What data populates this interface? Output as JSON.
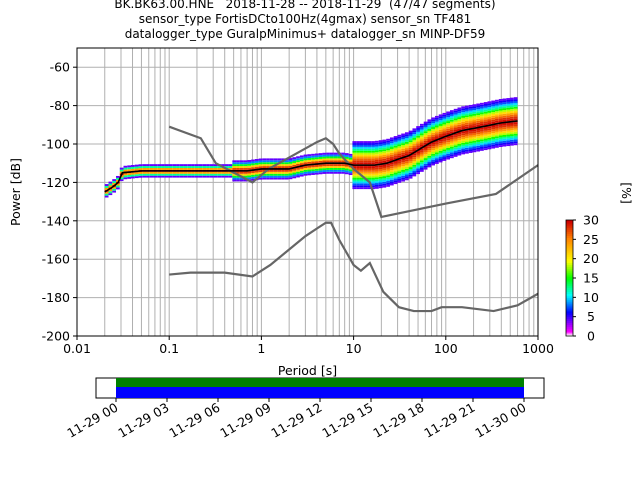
{
  "header": {
    "title_lines": [
      "BK.BK63.00.HNE   2018-11-28 -- 2018-11-29  (47/47 segments)",
      "sensor_type FortisDCto100Hz(4gmax) sensor_sn TF481",
      "datalogger_type GuralpMinimus+ datalogger_sn MINP-DF59"
    ]
  },
  "chart_data": {
    "type": "heatmap",
    "xlabel": "Period [s]",
    "ylabel": "Power [dB]",
    "xscale": "log",
    "xlim": [
      0.01,
      1000
    ],
    "ylim": [
      -200,
      -50
    ],
    "x_ticks": [
      "0.01",
      "0.1",
      "1",
      "10",
      "100",
      "1000"
    ],
    "y_ticks": [
      "-200",
      "-180",
      "-160",
      "-140",
      "-120",
      "-100",
      "-80",
      "-60"
    ],
    "grid": true,
    "colorbar": {
      "label": "[%]",
      "range": [
        0,
        30
      ],
      "ticks": [
        "0",
        "5",
        "10",
        "15",
        "20",
        "25",
        "30"
      ]
    },
    "noise_models": [
      {
        "x": [
          0.1,
          0.22,
          0.32,
          0.8,
          1.2,
          4,
          5,
          6,
          7,
          10,
          15,
          20,
          100,
          350,
          1000
        ],
        "y": [
          -91,
          -97,
          -110,
          -120,
          -113,
          -99,
          -97,
          -100,
          -105,
          -113,
          -120,
          -138,
          -131,
          -126,
          -111
        ]
      },
      {
        "x": [
          0.1,
          0.17,
          0.4,
          0.8,
          1.25,
          3,
          4,
          5,
          5.7,
          7,
          10,
          12,
          15,
          21,
          31,
          45,
          70,
          90,
          150,
          330,
          600,
          1000
        ],
        "y": [
          -168,
          -167,
          -167,
          -169,
          -163,
          -148,
          -144,
          -141,
          -141,
          -150,
          -163,
          -166,
          -162,
          -177,
          -185,
          -187,
          -187,
          -185,
          -185,
          -187,
          -184,
          -178
        ]
      }
    ],
    "mode_curve": {
      "x": [
        0.02,
        0.025,
        0.028,
        0.031,
        0.05,
        0.1,
        0.2,
        0.4,
        0.7,
        1,
        2,
        3,
        5,
        8,
        10,
        13,
        17,
        23,
        30,
        40,
        55,
        70,
        100,
        150,
        250,
        400,
        600
      ],
      "y": [
        -125,
        -122,
        -120,
        -115,
        -114,
        -114,
        -114,
        -114,
        -114,
        -113,
        -113,
        -111,
        -110,
        -110,
        -111,
        -111,
        -111,
        -110,
        -108,
        -106,
        -102,
        -99,
        -96,
        -93,
        -91,
        -89,
        -88
      ]
    },
    "timeline": {
      "tick_labels": [
        "11-29 00",
        "11-29 03",
        "11-29 06",
        "11-29 09",
        "11-29 12",
        "11-29 15",
        "11-29 18",
        "11-29 21",
        "11-30 00"
      ],
      "coverage_colors": [
        "#008000",
        "#0000ff"
      ]
    }
  }
}
